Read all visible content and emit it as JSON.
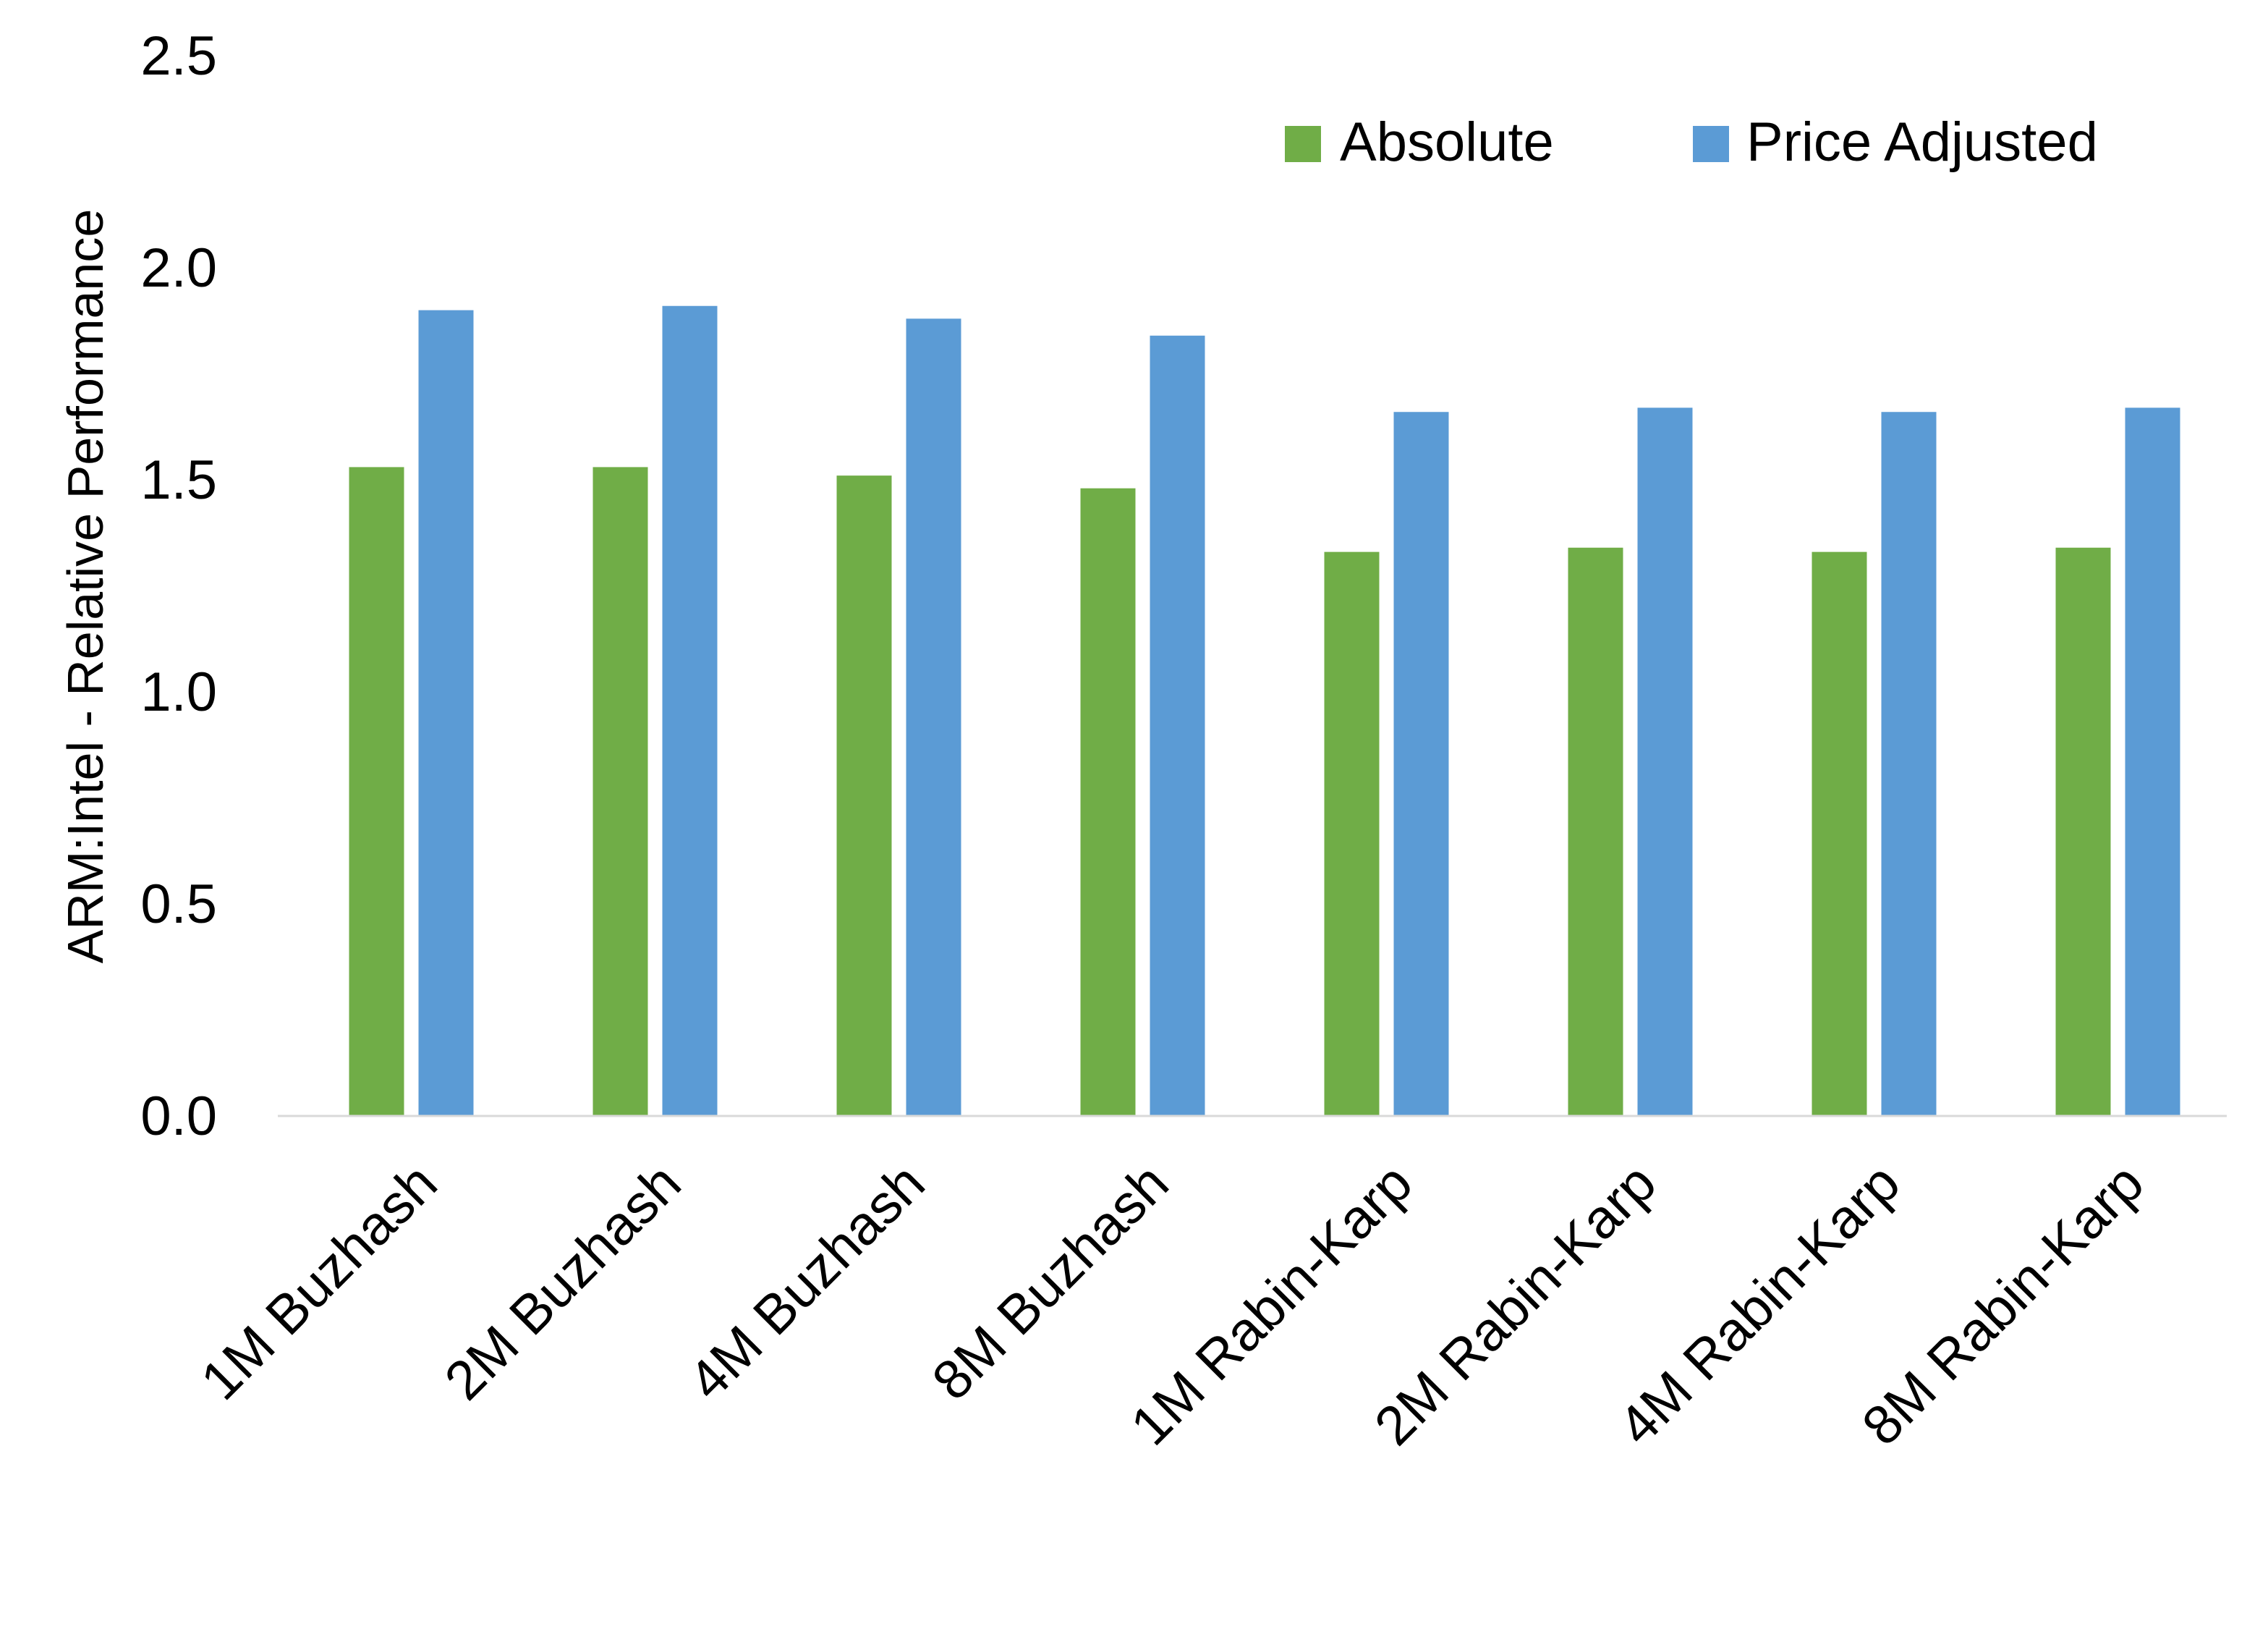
{
  "chart_data": {
    "type": "bar",
    "title": "",
    "xlabel": "",
    "ylabel": "ARM:Intel - Relative Performance",
    "ylim": [
      0,
      2.5
    ],
    "yticks": [
      "0.0",
      "0.5",
      "1.0",
      "1.5",
      "2.0",
      "2.5"
    ],
    "grid": false,
    "legend_position": "top-right",
    "categories": [
      "1M Buzhash",
      "2M Buzhash",
      "4M Buzhash",
      "8M Buzhash",
      "1M Rabin-Karp",
      "2M Rabin-Karp",
      "4M Rabin-Karp",
      "8M Rabin-Karp"
    ],
    "series": [
      {
        "name": "Absolute",
        "color": "#70ad47",
        "values": [
          1.53,
          1.53,
          1.51,
          1.48,
          1.33,
          1.34,
          1.33,
          1.34
        ]
      },
      {
        "name": "Price Adjusted",
        "color": "#5b9bd5",
        "values": [
          1.9,
          1.91,
          1.88,
          1.84,
          1.66,
          1.67,
          1.66,
          1.67
        ]
      }
    ]
  }
}
